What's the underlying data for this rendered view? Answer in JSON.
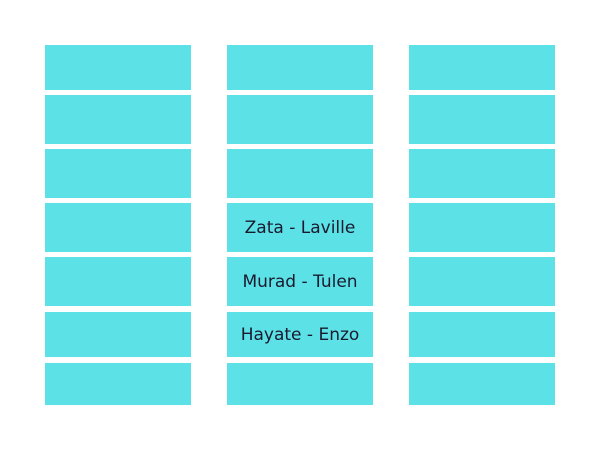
{
  "colors": {
    "cell": "#5ce1e6",
    "text": "#1a1a2e",
    "background": "#ffffff"
  },
  "columns": [
    {
      "cells": [
        "",
        "",
        "",
        "",
        "",
        "",
        ""
      ]
    },
    {
      "cells": [
        "",
        "",
        "",
        "Zata - Laville",
        "Murad - Tulen",
        "Hayate - Enzo",
        ""
      ]
    },
    {
      "cells": [
        "",
        "",
        "",
        "",
        "",
        "",
        ""
      ]
    }
  ]
}
